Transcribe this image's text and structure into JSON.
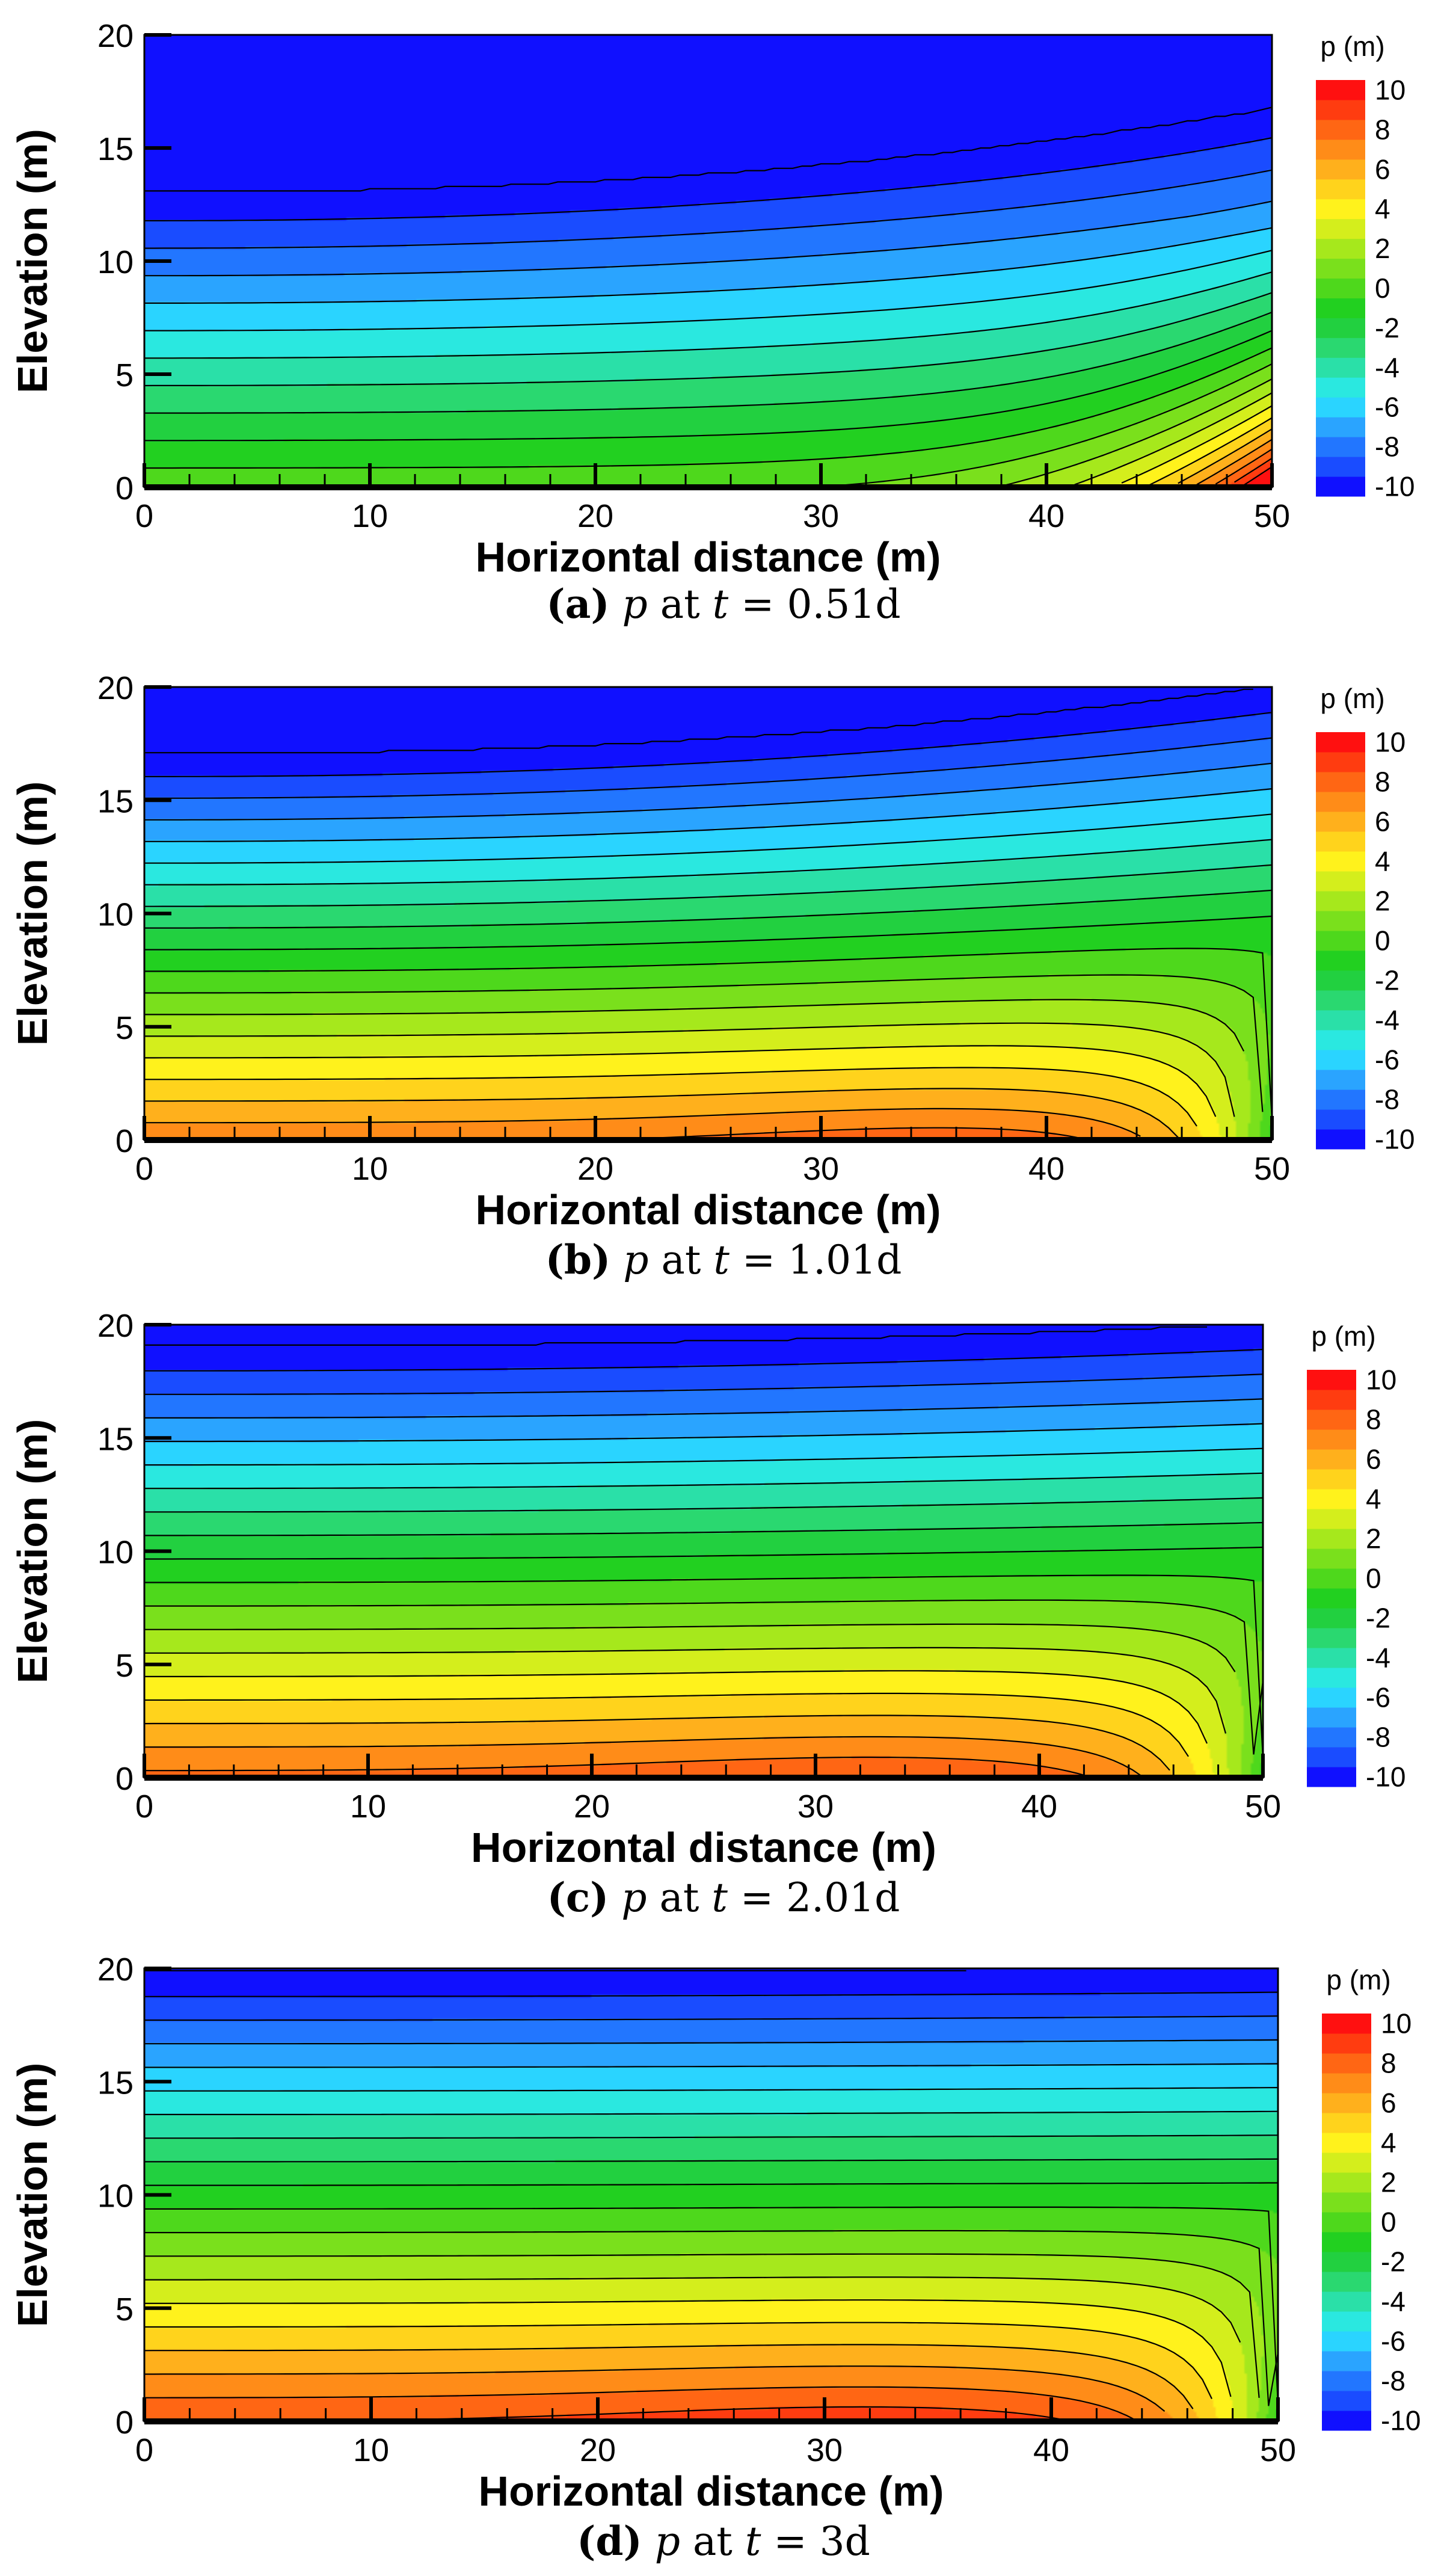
{
  "figure": {
    "panels": [
      {
        "id": "a",
        "caption": {
          "label": "(a)",
          "var": "p",
          "at": "at",
          "t": "t",
          "eq": "=",
          "value": "0.51d"
        },
        "shape": {
          "top_z_left": 13.0,
          "top_z_right": 16.7,
          "base_z": 0.0,
          "bottom_p": 0.7,
          "mound_amp": 0,
          "mound_center_x": 40,
          "right_mode": "seep",
          "face_amp": 9.5
        }
      },
      {
        "id": "b",
        "caption": {
          "label": "(b)",
          "var": "p",
          "at": "at",
          "t": "t",
          "eq": "=",
          "value": "1.01d"
        },
        "shape": {
          "top_z_left": 17.0,
          "top_z_right": 20.0,
          "base_z": 0.0,
          "bottom_p": 7.8,
          "mound_amp": 1.0,
          "mound_center_x": 38,
          "right_mode": "drain",
          "face_amp": 0
        }
      },
      {
        "id": "c",
        "caption": {
          "label": "(c)",
          "var": "p",
          "at": "at",
          "t": "t",
          "eq": "=",
          "value": "2.01d"
        },
        "shape": {
          "top_z_left": 19.0,
          "top_z_right": 20.0,
          "base_z": 0.0,
          "bottom_p": 8.3,
          "mound_amp": 0.8,
          "mound_center_x": 34,
          "right_mode": "drain",
          "face_amp": 0
        }
      },
      {
        "id": "d",
        "caption": {
          "label": "(d)",
          "var": "p",
          "at": "at",
          "t": "t",
          "eq": "=",
          "value": "3d"
        },
        "shape": {
          "top_z_left": 19.8,
          "top_z_right": 20.0,
          "base_z": 0.0,
          "bottom_p": 9.0,
          "mound_amp": 0.8,
          "mound_center_x": 33,
          "right_mode": "drain",
          "face_amp": 0
        }
      }
    ]
  },
  "chart_data": {
    "type": "heatmap",
    "description_of_variable": "p (m)",
    "xlabel": "Horizontal distance (m)",
    "ylabel": "Elevation (m)",
    "xlim": [
      0,
      50
    ],
    "ylim": [
      0,
      20
    ],
    "xticks": [
      "0",
      "10",
      "20",
      "30",
      "40",
      "50"
    ],
    "yticks": [
      "0",
      "5",
      "10",
      "15",
      "20"
    ],
    "colorbar": {
      "title": "p (m)",
      "ticks": [
        "10",
        "8",
        "6",
        "4",
        "2",
        "0",
        "-2",
        "-4",
        "-6",
        "-8",
        "-10"
      ],
      "range": [
        -10,
        10
      ],
      "levels": [
        -10,
        -9,
        -8,
        -7,
        -6,
        -5,
        -4,
        -3,
        -2,
        -1,
        0,
        1,
        2,
        3,
        4,
        5,
        6,
        7,
        8,
        9,
        10
      ],
      "colors": [
        "#1010ff",
        "#1a4cff",
        "#2276ff",
        "#2aa4ff",
        "#2ad4ff",
        "#2ae8e0",
        "#2ae0a8",
        "#2ad870",
        "#22d040",
        "#22d020",
        "#4ed81c",
        "#7ae01c",
        "#a6e81c",
        "#d4ee1c",
        "#fff21c",
        "#ffd31c",
        "#ffb01c",
        "#ff8c18",
        "#ff6614",
        "#ff3c10",
        "#ff1010"
      ]
    },
    "panels": [
      {
        "panel": "a",
        "time": "0.51d"
      },
      {
        "panel": "b",
        "time": "1.01d"
      },
      {
        "panel": "c",
        "time": "2.01d"
      },
      {
        "panel": "d",
        "time": "3d"
      }
    ]
  }
}
